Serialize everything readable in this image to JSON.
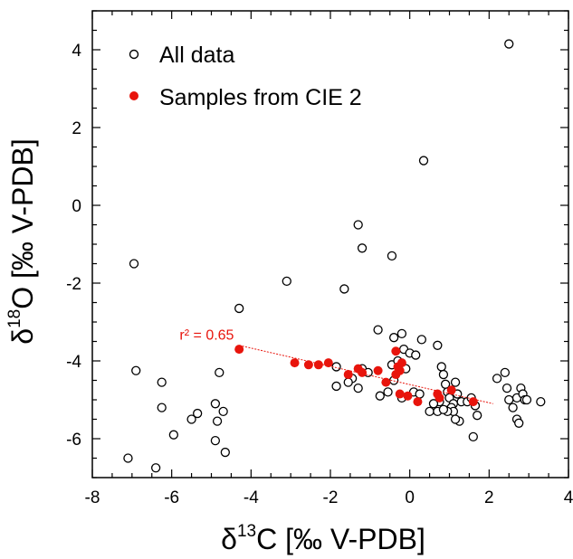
{
  "chart_data": {
    "type": "scatter",
    "title": "",
    "xlabel": {
      "prefix": "δ",
      "sup": "13",
      "main": "C [‰ V-PDB]"
    },
    "ylabel": {
      "prefix": "δ",
      "sup": "18",
      "main": "O [‰ V-PDB]"
    },
    "xlim": [
      -8,
      4
    ],
    "ylim": [
      -7,
      5
    ],
    "x_ticks": [
      -8,
      -6,
      -4,
      -2,
      0,
      2,
      4
    ],
    "y_ticks": [
      -6,
      -4,
      -2,
      0,
      2,
      4
    ],
    "x_tick_labels": [
      "-8",
      "-6",
      "-4",
      "-2",
      "0",
      "2",
      "4"
    ],
    "y_tick_labels": [
      "-6",
      "-4",
      "-2",
      "0",
      "2",
      "4"
    ],
    "grid": false,
    "legend_position": "top-left",
    "series": [
      {
        "name": "All data",
        "marker": "open-circle",
        "color": "#000000",
        "points": [
          [
            2.5,
            4.15
          ],
          [
            0.35,
            1.15
          ],
          [
            -1.3,
            -0.5
          ],
          [
            -1.2,
            -1.1
          ],
          [
            -0.45,
            -1.3
          ],
          [
            -6.95,
            -1.5
          ],
          [
            -3.1,
            -1.95
          ],
          [
            -1.65,
            -2.15
          ],
          [
            -4.3,
            -2.65
          ],
          [
            -0.8,
            -3.2
          ],
          [
            -0.2,
            -3.3
          ],
          [
            -0.4,
            -3.4
          ],
          [
            0.3,
            -3.45
          ],
          [
            0.7,
            -3.6
          ],
          [
            -0.15,
            -3.7
          ],
          [
            0.0,
            -3.8
          ],
          [
            0.15,
            -3.85
          ],
          [
            -6.9,
            -4.25
          ],
          [
            -4.8,
            -4.3
          ],
          [
            -6.25,
            -4.55
          ],
          [
            -7.1,
            -6.5
          ],
          [
            -6.4,
            -6.75
          ],
          [
            -4.65,
            -6.35
          ],
          [
            -4.9,
            -6.05
          ],
          [
            -5.95,
            -5.9
          ],
          [
            -5.5,
            -5.5
          ],
          [
            -5.35,
            -5.35
          ],
          [
            -4.85,
            -5.55
          ],
          [
            -4.7,
            -5.3
          ],
          [
            -4.9,
            -5.1
          ],
          [
            -6.25,
            -5.2
          ],
          [
            -1.85,
            -4.15
          ],
          [
            -1.45,
            -4.45
          ],
          [
            -1.3,
            -4.7
          ],
          [
            -1.85,
            -4.65
          ],
          [
            -1.55,
            -4.55
          ],
          [
            -1.2,
            -4.2
          ],
          [
            -1.05,
            -4.3
          ],
          [
            -0.45,
            -4.1
          ],
          [
            -0.3,
            -4.0
          ],
          [
            -0.1,
            -4.2
          ],
          [
            -0.4,
            -4.5
          ],
          [
            -0.55,
            -4.8
          ],
          [
            -0.75,
            -4.9
          ],
          [
            -0.2,
            -4.95
          ],
          [
            0.1,
            -4.8
          ],
          [
            0.25,
            -4.85
          ],
          [
            0.5,
            -5.3
          ],
          [
            0.8,
            -4.15
          ],
          [
            0.85,
            -4.35
          ],
          [
            0.9,
            -4.6
          ],
          [
            0.95,
            -4.8
          ],
          [
            1.0,
            -4.95
          ],
          [
            1.1,
            -5.1
          ],
          [
            1.0,
            -5.25
          ],
          [
            1.05,
            -5.2
          ],
          [
            1.1,
            -5.3
          ],
          [
            0.95,
            -5.3
          ],
          [
            1.2,
            -4.85
          ],
          [
            1.3,
            -5.05
          ],
          [
            1.45,
            -5.05
          ],
          [
            1.55,
            -4.95
          ],
          [
            1.65,
            -5.15
          ],
          [
            1.7,
            -5.4
          ],
          [
            1.25,
            -5.55
          ],
          [
            1.15,
            -5.5
          ],
          [
            1.6,
            -5.95
          ],
          [
            2.2,
            -4.45
          ],
          [
            2.4,
            -4.3
          ],
          [
            2.45,
            -4.7
          ],
          [
            2.5,
            -5.0
          ],
          [
            2.6,
            -5.2
          ],
          [
            2.7,
            -4.95
          ],
          [
            2.8,
            -4.7
          ],
          [
            2.85,
            -4.85
          ],
          [
            2.9,
            -5.0
          ],
          [
            2.95,
            -5.0
          ],
          [
            2.7,
            -5.5
          ],
          [
            2.75,
            -5.6
          ],
          [
            3.3,
            -5.05
          ],
          [
            0.7,
            -5.3
          ],
          [
            0.75,
            -5.05
          ],
          [
            0.6,
            -5.1
          ],
          [
            1.15,
            -4.55
          ],
          [
            0.85,
            -5.25
          ]
        ]
      },
      {
        "name": "Samples from CIE 2",
        "marker": "filled-circle",
        "color": "#e8140c",
        "points": [
          [
            -4.3,
            -3.7
          ],
          [
            -2.9,
            -4.05
          ],
          [
            -2.55,
            -4.1
          ],
          [
            -2.3,
            -4.1
          ],
          [
            -2.05,
            -4.05
          ],
          [
            -1.55,
            -4.35
          ],
          [
            -1.3,
            -4.2
          ],
          [
            -1.2,
            -4.3
          ],
          [
            -0.35,
            -3.75
          ],
          [
            -0.3,
            -4.15
          ],
          [
            -0.25,
            -4.25
          ],
          [
            -0.35,
            -4.35
          ],
          [
            -0.2,
            -4.05
          ],
          [
            -0.8,
            -4.25
          ],
          [
            -0.6,
            -4.55
          ],
          [
            -0.25,
            -4.85
          ],
          [
            -0.05,
            -4.9
          ],
          [
            0.2,
            -5.05
          ],
          [
            0.7,
            -4.85
          ],
          [
            0.75,
            -4.95
          ],
          [
            1.05,
            -4.75
          ],
          [
            1.6,
            -5.05
          ]
        ]
      }
    ],
    "trendline": {
      "x": [
        -4.3,
        2.1
      ],
      "y": [
        -3.6,
        -5.1
      ],
      "color": "#e8140c"
    },
    "annotation": {
      "text": "r² = 0.65",
      "x": -5.8,
      "y": -3.45
    }
  }
}
